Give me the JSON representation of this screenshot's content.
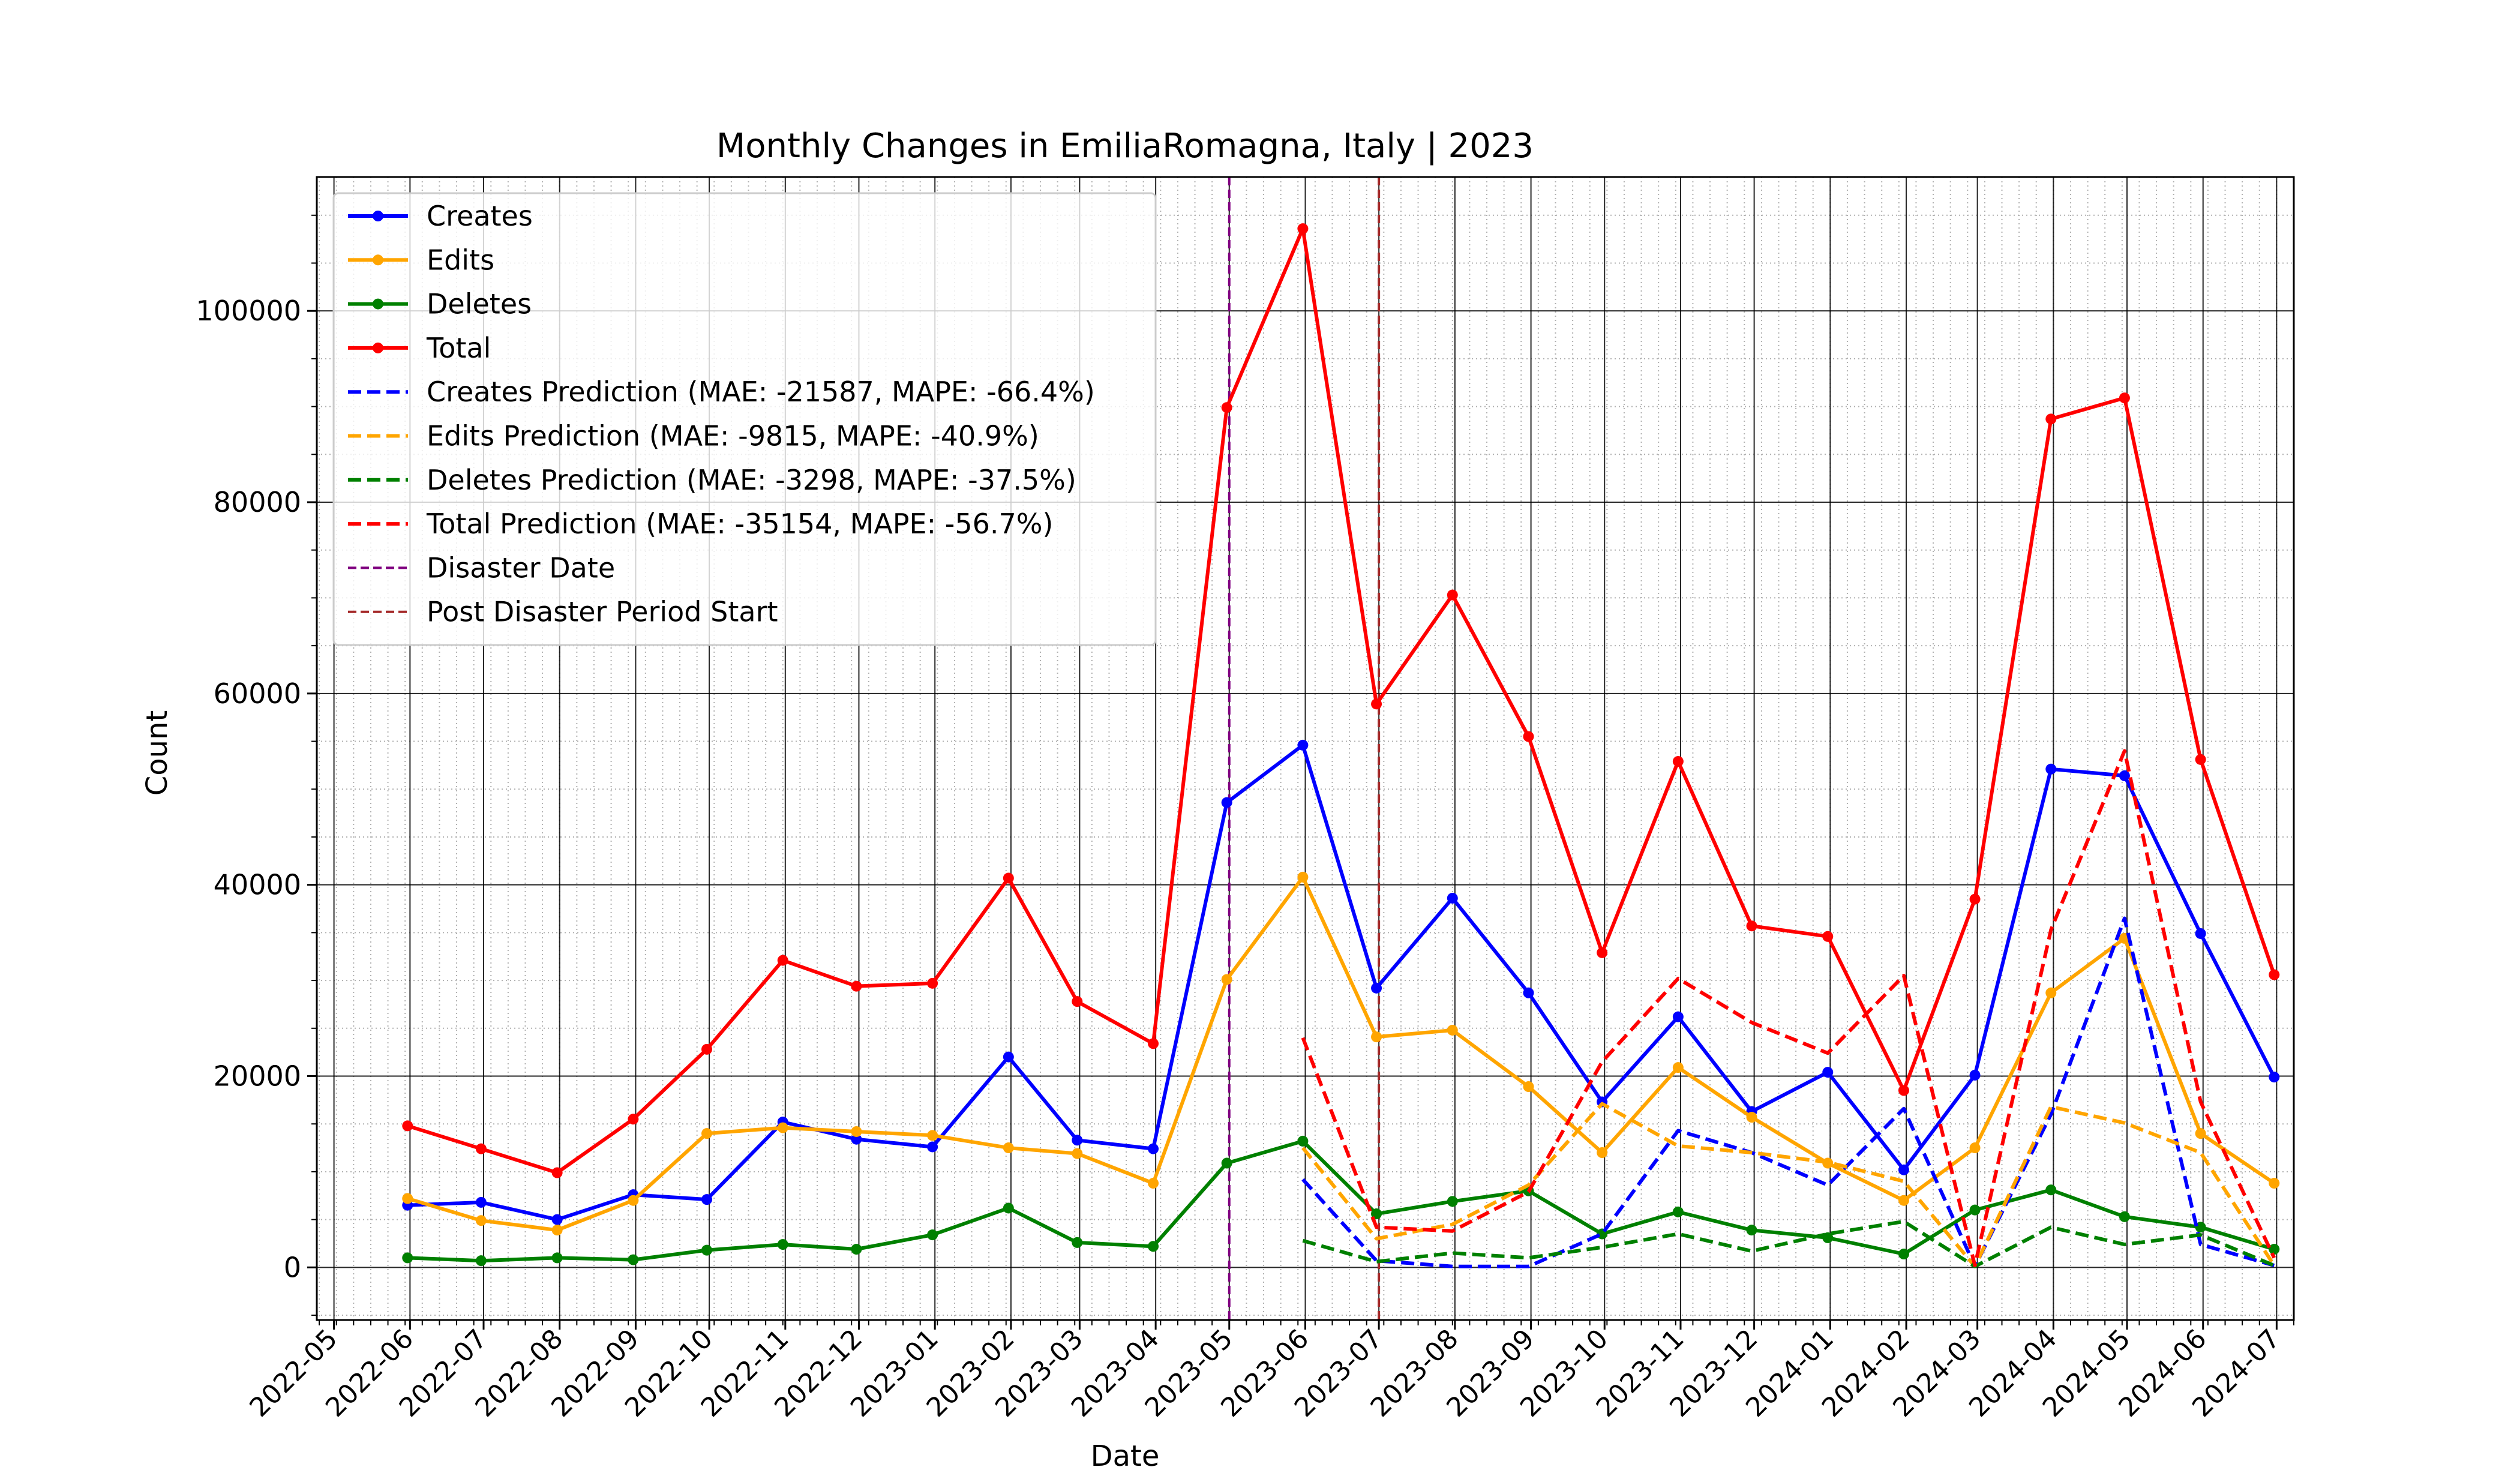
{
  "chart_data": {
    "type": "line",
    "title": "Monthly Changes in EmiliaRomagna, Italy | 2023",
    "xlabel": "Date",
    "ylabel": "Count",
    "ylim": [
      -5500,
      114000
    ],
    "xlim": [
      "2022-04-24",
      "2024-07-08"
    ],
    "y_ticks": [
      0,
      20000,
      40000,
      60000,
      80000,
      100000
    ],
    "y_tick_labels": [
      "0",
      "20000",
      "40000",
      "60000",
      "80000",
      "100000"
    ],
    "x_ticks": [
      "2022-05-01",
      "2022-06-01",
      "2022-07-01",
      "2022-08-01",
      "2022-09-01",
      "2022-10-01",
      "2022-11-01",
      "2022-12-01",
      "2023-01-01",
      "2023-02-01",
      "2023-03-01",
      "2023-04-01",
      "2023-05-01",
      "2023-06-01",
      "2023-07-01",
      "2023-08-01",
      "2023-09-01",
      "2023-10-01",
      "2023-11-01",
      "2023-12-01",
      "2024-01-01",
      "2024-02-01",
      "2024-03-01",
      "2024-04-01",
      "2024-05-01",
      "2024-06-01",
      "2024-07-01"
    ],
    "x_tick_labels": [
      "2022-05",
      "2022-06",
      "2022-07",
      "2022-08",
      "2022-09",
      "2022-10",
      "2022-11",
      "2022-12",
      "2023-01",
      "2023-02",
      "2023-03",
      "2023-04",
      "2023-05",
      "2023-06",
      "2023-07",
      "2023-08",
      "2023-09",
      "2023-10",
      "2023-11",
      "2023-12",
      "2024-01",
      "2024-02",
      "2024-03",
      "2024-04",
      "2024-05",
      "2024-06",
      "2024-07"
    ],
    "grid": "major solid, minor dotted",
    "legend_position": "top-left",
    "x": [
      "2022-05-31",
      "2022-06-30",
      "2022-07-31",
      "2022-08-31",
      "2022-09-30",
      "2022-10-31",
      "2022-11-30",
      "2022-12-31",
      "2023-01-31",
      "2023-02-28",
      "2023-03-31",
      "2023-04-30",
      "2023-05-31",
      "2023-06-30",
      "2023-07-31",
      "2023-08-31",
      "2023-09-30",
      "2023-10-31",
      "2023-11-30",
      "2023-12-31",
      "2024-01-31",
      "2024-02-29",
      "2024-03-31",
      "2024-04-30",
      "2024-05-31",
      "2024-06-30"
    ],
    "series": [
      {
        "name": "Creates",
        "color": "#0000ff",
        "style": "solid-markers",
        "values": [
          6500,
          6800,
          5000,
          7600,
          7100,
          15200,
          13400,
          12600,
          22000,
          13300,
          12400,
          48600,
          54600,
          29200,
          38600,
          28700,
          17300,
          26200,
          16300,
          20400,
          10200,
          20100,
          52100,
          51400,
          34900,
          19900
        ]
      },
      {
        "name": "Edits",
        "color": "#ffa500",
        "style": "solid-markers",
        "values": [
          7200,
          4900,
          3900,
          7000,
          14000,
          14600,
          14200,
          13800,
          12500,
          11900,
          8800,
          30100,
          40800,
          24100,
          24800,
          18900,
          12000,
          20900,
          15700,
          10900,
          7000,
          12500,
          28700,
          34400,
          14000,
          8800
        ]
      },
      {
        "name": "Deletes",
        "color": "#008000",
        "style": "solid-markers",
        "values": [
          1000,
          700,
          1000,
          800,
          1800,
          2400,
          1900,
          3400,
          6200,
          2600,
          2200,
          10900,
          13200,
          5600,
          6900,
          8000,
          3500,
          5800,
          3900,
          3100,
          1400,
          6000,
          8100,
          5300,
          4200,
          1900
        ]
      },
      {
        "name": "Total",
        "color": "#ff0000",
        "style": "solid-markers",
        "values": [
          14800,
          12400,
          9900,
          15500,
          22800,
          32100,
          29400,
          29700,
          40700,
          27800,
          23400,
          89900,
          108600,
          58900,
          70300,
          55500,
          32900,
          52900,
          35700,
          34600,
          18500,
          38500,
          88700,
          90900,
          53100,
          30600
        ]
      },
      {
        "name": "Creates Prediction (MAE: -21587, MAPE: -66.4%)",
        "color": "#0000ff",
        "style": "dashed",
        "values": [
          null,
          null,
          null,
          null,
          null,
          null,
          null,
          null,
          null,
          null,
          null,
          null,
          9200,
          700,
          100,
          100,
          3500,
          14300,
          12000,
          8600,
          16600,
          100,
          16000,
          36500,
          2400,
          200
        ]
      },
      {
        "name": "Edits Prediction (MAE: -9815, MAPE: -40.9%)",
        "color": "#ffa500",
        "style": "dashed",
        "values": [
          null,
          null,
          null,
          null,
          null,
          null,
          null,
          null,
          null,
          null,
          null,
          null,
          12500,
          3000,
          4500,
          8600,
          17100,
          12700,
          12000,
          11000,
          9000,
          100,
          16800,
          15100,
          12000,
          200
        ]
      },
      {
        "name": "Deletes Prediction (MAE: -3298, MAPE: -37.5%)",
        "color": "#008000",
        "style": "dashed",
        "values": [
          null,
          null,
          null,
          null,
          null,
          null,
          null,
          null,
          null,
          null,
          null,
          null,
          2800,
          600,
          1500,
          1000,
          2100,
          3500,
          1700,
          3500,
          4800,
          100,
          4200,
          2400,
          3400,
          200
        ]
      },
      {
        "name": "Total Prediction (MAE: -35154, MAPE: -56.7%)",
        "color": "#ff0000",
        "style": "dashed",
        "values": [
          null,
          null,
          null,
          null,
          null,
          null,
          null,
          null,
          null,
          null,
          null,
          null,
          24000,
          4200,
          3800,
          7900,
          21500,
          30200,
          25600,
          22400,
          30500,
          200,
          35300,
          54000,
          17300,
          1000
        ]
      }
    ],
    "vlines": [
      {
        "name": "Disaster Date",
        "date": "2023-05-01",
        "color": "#800080"
      },
      {
        "name": "Post Disaster Period Start",
        "date": "2023-07-01",
        "color": "#a52a2a"
      }
    ]
  }
}
